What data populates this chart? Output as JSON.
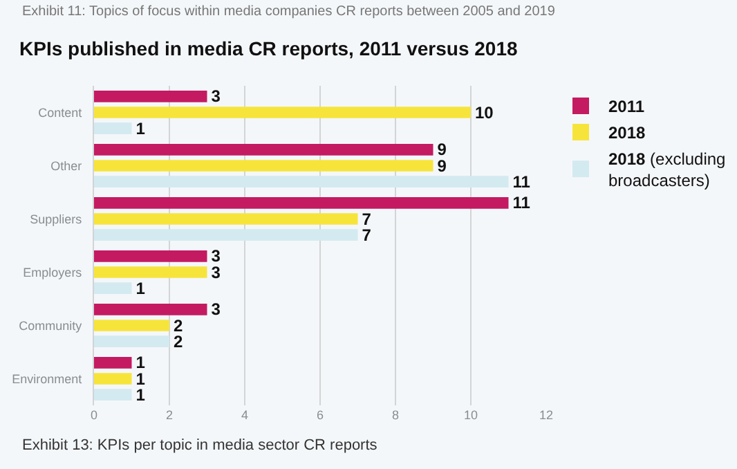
{
  "chart_data": {
    "type": "bar",
    "orientation": "horizontal",
    "title": "KPIs published in media CR reports, 2011 versus 2018",
    "annotations": [
      "Exhibit 11: Topics of focus within media companies CR reports between 2005 and 2019",
      "Exhibit 13: KPIs per topic in media sector CR reports"
    ],
    "categories": [
      "Content",
      "Other",
      "Suppliers",
      "Employers",
      "Community",
      "Environment"
    ],
    "series": [
      {
        "name": "2011",
        "color": "#c41a62",
        "values": [
          3,
          9,
          11,
          3,
          3,
          1
        ]
      },
      {
        "name": "2018",
        "color": "#f7e43b",
        "values": [
          10,
          9,
          7,
          3,
          2,
          1
        ]
      },
      {
        "name": "2018 (excluding broadcasters)",
        "color": "#d3eaf0",
        "values": [
          1,
          11,
          7,
          1,
          2,
          1
        ]
      }
    ],
    "xlim": [
      0,
      12
    ],
    "xticks": [
      0,
      2,
      4,
      6,
      8,
      10,
      12
    ],
    "grid": "x",
    "legend": "top right",
    "data_labels": true
  }
}
